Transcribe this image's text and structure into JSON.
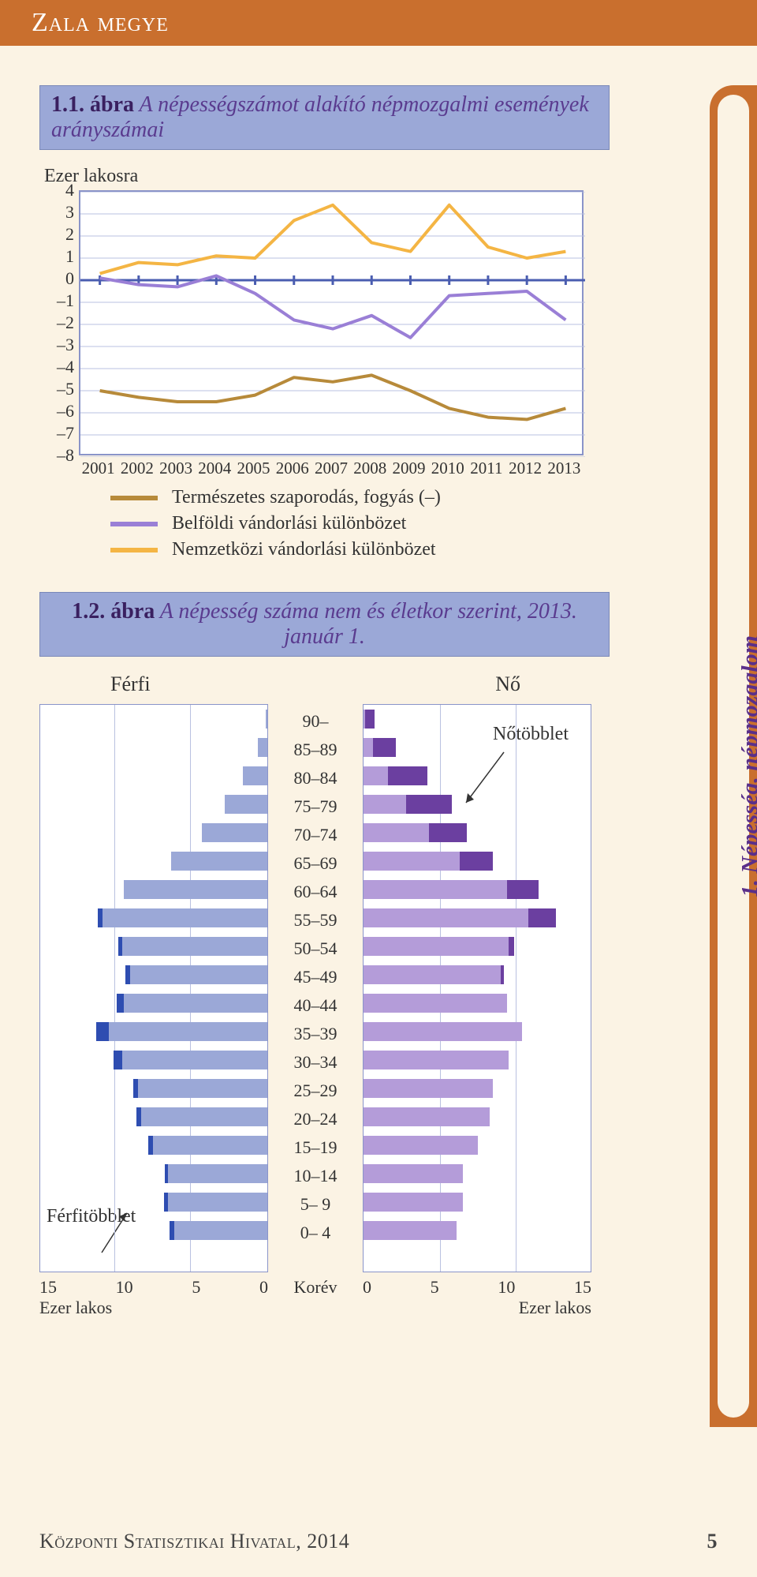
{
  "header": {
    "region": "Zala megye"
  },
  "sidebar": {
    "label": "1. Népesség, népmozgalom"
  },
  "fig1": {
    "num": "1.1. ábra",
    "title": "A népességszámot alakító népmozgalmi események arányszámai",
    "ylabel": "Ezer lakosra",
    "ylim": [
      -8,
      4
    ],
    "yticks": [
      4,
      3,
      2,
      1,
      0,
      -1,
      -2,
      -3,
      -4,
      -5,
      -6,
      -7,
      -8
    ],
    "years": [
      2001,
      2002,
      2003,
      2004,
      2005,
      2006,
      2007,
      2008,
      2009,
      2010,
      2011,
      2012,
      2013
    ],
    "series": {
      "natural": {
        "label": "Természetes szaporodás, fogyás (–)",
        "color": "#b78a3a",
        "values": [
          -5.0,
          -5.3,
          -5.5,
          -5.5,
          -5.2,
          -4.4,
          -4.6,
          -4.3,
          -5.0,
          -5.8,
          -6.2,
          -6.3,
          -5.8
        ]
      },
      "domestic": {
        "label": "Belföldi vándorlási különbözet",
        "color": "#9a7fd6",
        "values": [
          0.1,
          -0.2,
          -0.3,
          0.2,
          -0.6,
          -1.8,
          -2.2,
          -1.6,
          -2.6,
          -0.7,
          -0.6,
          -0.5,
          -1.8
        ]
      },
      "intl": {
        "label": "Nemzetközi vándorlási különbözet",
        "color": "#f4b544",
        "values": [
          0.3,
          0.8,
          0.7,
          1.1,
          1.0,
          2.7,
          3.4,
          1.7,
          1.3,
          3.4,
          1.5,
          1.0,
          1.3
        ]
      }
    },
    "grid_color": "#b9c1e0",
    "axis_color": "#8a94c9",
    "zero_line_color": "#4a5db0",
    "bg": "#ffffff"
  },
  "fig2": {
    "num": "1.2. ábra",
    "title": "A népesség száma nem és életkor szerint, 2013. január 1.",
    "left_label": "Férfi",
    "right_label": "Nő",
    "age_groups": [
      "90–",
      "85–89",
      "80–84",
      "75–79",
      "70–74",
      "65–69",
      "60–64",
      "55–59",
      "50–54",
      "45–49",
      "40–44",
      "35–39",
      "30–34",
      "25–29",
      "20–24",
      "15–19",
      "10–14",
      "5– 9",
      "0– 4"
    ],
    "center_bottom": "Korév",
    "xmax": 15,
    "xticks": [
      15,
      10,
      5,
      0
    ],
    "xticks_right": [
      0,
      5,
      10,
      15
    ],
    "xlabel": "Ezer lakos",
    "male_base_color": "#9ba8d7",
    "male_surplus_color": "#2e4db1",
    "female_base_color": "#b49cd9",
    "female_surplus_color": "#6b3fa0",
    "male": {
      "base": [
        0.1,
        0.6,
        1.6,
        2.8,
        4.3,
        6.3,
        9.4,
        10.8,
        9.5,
        9.0,
        9.4,
        10.4,
        9.5,
        8.5,
        8.3,
        7.5,
        6.5,
        6.5,
        6.1
      ],
      "surplus": [
        0,
        0,
        0,
        0,
        0,
        0,
        0,
        0.3,
        0.3,
        0.3,
        0.5,
        0.8,
        0.6,
        0.3,
        0.3,
        0.3,
        0.2,
        0.3,
        0.3
      ]
    },
    "female": {
      "base": [
        0.1,
        0.6,
        1.6,
        2.8,
        4.3,
        6.3,
        9.4,
        10.8,
        9.5,
        9.0,
        9.4,
        10.4,
        9.5,
        8.5,
        8.3,
        7.5,
        6.5,
        6.5,
        6.1
      ],
      "surplus": [
        0.6,
        1.5,
        2.6,
        3.0,
        2.5,
        2.2,
        2.1,
        1.8,
        0.4,
        0.2,
        0,
        0,
        0,
        0,
        0,
        0,
        0,
        0,
        0
      ]
    },
    "ann_male": "Férfitöbblet",
    "ann_female": "Nőtöbblet"
  },
  "footer": {
    "publisher": "Központi Statisztikai Hivatal, 2014",
    "page": "5"
  }
}
